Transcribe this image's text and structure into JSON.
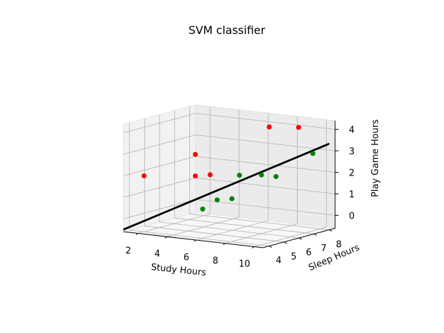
{
  "chart_data": {
    "type": "scatter",
    "projection": "3d",
    "title": "SVM classifier",
    "xlabel": "Study Hours",
    "ylabel": "Sleep Hours",
    "zlabel": "Play Game Hours",
    "xlim": [
      1,
      10.6
    ],
    "ylim": [
      3.6,
      8.4
    ],
    "zlim": [
      -0.6,
      4.4
    ],
    "xticks": [
      "2",
      "4",
      "6",
      "8",
      "10"
    ],
    "yticks": [
      "4",
      "5",
      "6",
      "7",
      "8"
    ],
    "zticks": [
      "0",
      "1",
      "2",
      "3",
      "4"
    ],
    "grid": true,
    "series": [
      {
        "color": "#ff0000",
        "points": [
          {
            "x": 2,
            "y": 4,
            "z": 2
          },
          {
            "x": 4.5,
            "y": 5,
            "z": 2
          },
          {
            "x": 4.5,
            "y": 5,
            "z": 3
          },
          {
            "x": 5,
            "y": 5.5,
            "z": 2
          },
          {
            "x": 7,
            "y": 7.5,
            "z": 4
          },
          {
            "x": 8.5,
            "y": 8,
            "z": 4
          }
        ]
      },
      {
        "color": "#008000",
        "points": [
          {
            "x": 5,
            "y": 5,
            "z": 0.5
          },
          {
            "x": 6,
            "y": 5,
            "z": 1
          },
          {
            "x": 6.5,
            "y": 5.5,
            "z": 1
          },
          {
            "x": 6.5,
            "y": 6,
            "z": 2
          },
          {
            "x": 7.5,
            "y": 6.5,
            "z": 2
          },
          {
            "x": 8.5,
            "y": 6.5,
            "z": 2
          },
          {
            "x": 10,
            "y": 7.5,
            "z": 3
          }
        ]
      }
    ],
    "decision_surface": {
      "color": "#000000",
      "from": {
        "x": 1,
        "y": 3.6,
        "z": -0.5
      },
      "to": {
        "x": 10.6,
        "y": 8,
        "z": 3.4
      }
    }
  }
}
